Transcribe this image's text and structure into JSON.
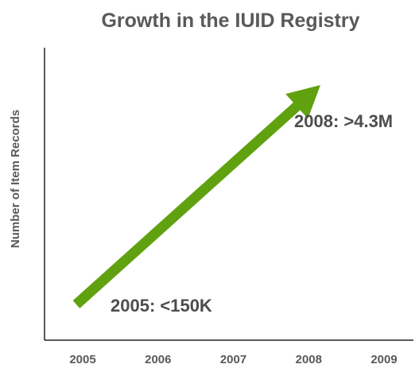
{
  "chart_data": {
    "type": "line",
    "title": "Growth in the IUID Registry",
    "xlabel": "",
    "ylabel": "Number of Item Records",
    "categories": [
      "2005",
      "2006",
      "2007",
      "2008",
      "2009"
    ],
    "series": [
      {
        "x": [
          "2005",
          "2008"
        ],
        "values": [
          150000,
          4300000
        ]
      }
    ],
    "annotations": [
      {
        "text": "2005: <150K",
        "x": "2005"
      },
      {
        "text": "2008: >4.3M",
        "x": "2008"
      }
    ],
    "style": "arrow",
    "grid": false,
    "legend": "none",
    "colors": {
      "arrow": "#5fa10f",
      "axis": "#222222",
      "text": "#595959"
    }
  }
}
